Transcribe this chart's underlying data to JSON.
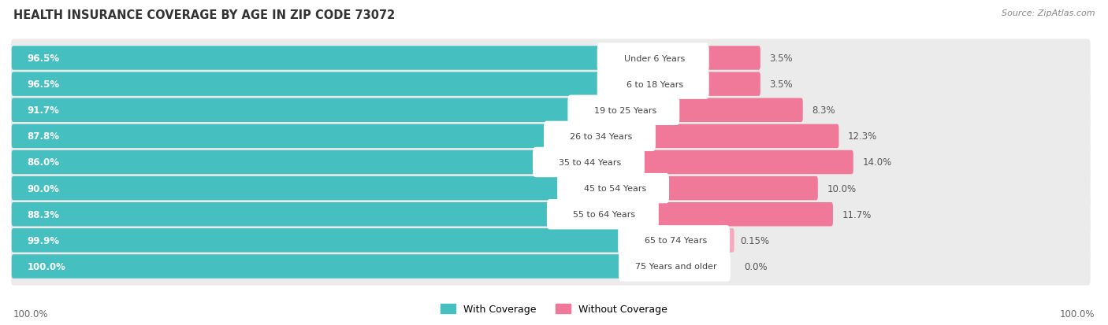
{
  "title": "HEALTH INSURANCE COVERAGE BY AGE IN ZIP CODE 73072",
  "source": "Source: ZipAtlas.com",
  "categories": [
    "Under 6 Years",
    "6 to 18 Years",
    "19 to 25 Years",
    "26 to 34 Years",
    "35 to 44 Years",
    "45 to 54 Years",
    "55 to 64 Years",
    "65 to 74 Years",
    "75 Years and older"
  ],
  "with_coverage": [
    96.5,
    96.5,
    91.7,
    87.8,
    86.0,
    90.0,
    88.3,
    99.9,
    100.0
  ],
  "without_coverage": [
    3.5,
    3.5,
    8.3,
    12.3,
    14.0,
    10.0,
    11.7,
    0.15,
    0.0
  ],
  "with_coverage_labels": [
    "96.5%",
    "96.5%",
    "91.7%",
    "87.8%",
    "86.0%",
    "90.0%",
    "88.3%",
    "99.9%",
    "100.0%"
  ],
  "without_coverage_labels": [
    "3.5%",
    "3.5%",
    "8.3%",
    "12.3%",
    "14.0%",
    "10.0%",
    "11.7%",
    "0.15%",
    "0.0%"
  ],
  "color_with": "#45BFBF",
  "color_without": "#F07898",
  "color_without_light": "#F5AABF",
  "background": "#FFFFFF",
  "row_bg": "#EBEBEB",
  "title_fontsize": 10.5,
  "label_fontsize": 8.5,
  "legend_fontsize": 9,
  "source_fontsize": 8
}
